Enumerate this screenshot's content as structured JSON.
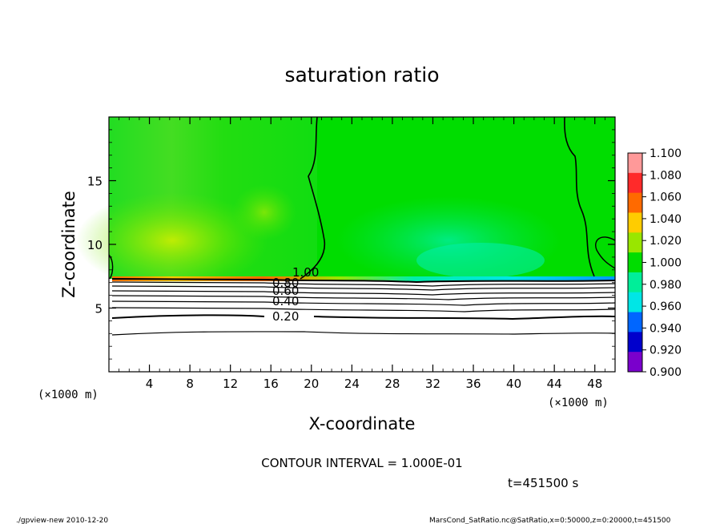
{
  "chart_data": {
    "type": "heatmap",
    "title": "saturation ratio",
    "xlabel": "X-coordinate",
    "ylabel": "Z-coordinate",
    "x_unit": "(×1000 m)",
    "y_unit": "(×1000 m)",
    "xlim": [
      0,
      50
    ],
    "ylim": [
      0,
      20
    ],
    "x_ticks": [
      4,
      8,
      12,
      16,
      20,
      24,
      28,
      32,
      36,
      40,
      44,
      48
    ],
    "y_ticks": [
      5,
      10,
      15
    ],
    "colorbar": {
      "levels": [
        "1.100",
        "1.080",
        "1.060",
        "1.040",
        "1.020",
        "1.000",
        "0.980",
        "0.960",
        "0.940",
        "0.920",
        "0.900"
      ],
      "colors": [
        "#ff9999",
        "#ff2a2a",
        "#ff6a00",
        "#ffcc00",
        "#99e600",
        "#00dd00",
        "#00ee99",
        "#00e6e6",
        "#0066ff",
        "#0000cc",
        "#7a00cc"
      ]
    },
    "contour_labels": [
      "1.00",
      "0.80",
      "0.60",
      "0.40",
      "0.20"
    ],
    "contour_interval_text": "CONTOUR INTERVAL = 1.000E-01",
    "time_text": "t=451500 s"
  },
  "footer": {
    "left": "./gpview-new   2010-12-20",
    "right": "MarsCond_SatRatio.nc@SatRatio,x=0:50000,z=0:20000,t=451500"
  }
}
